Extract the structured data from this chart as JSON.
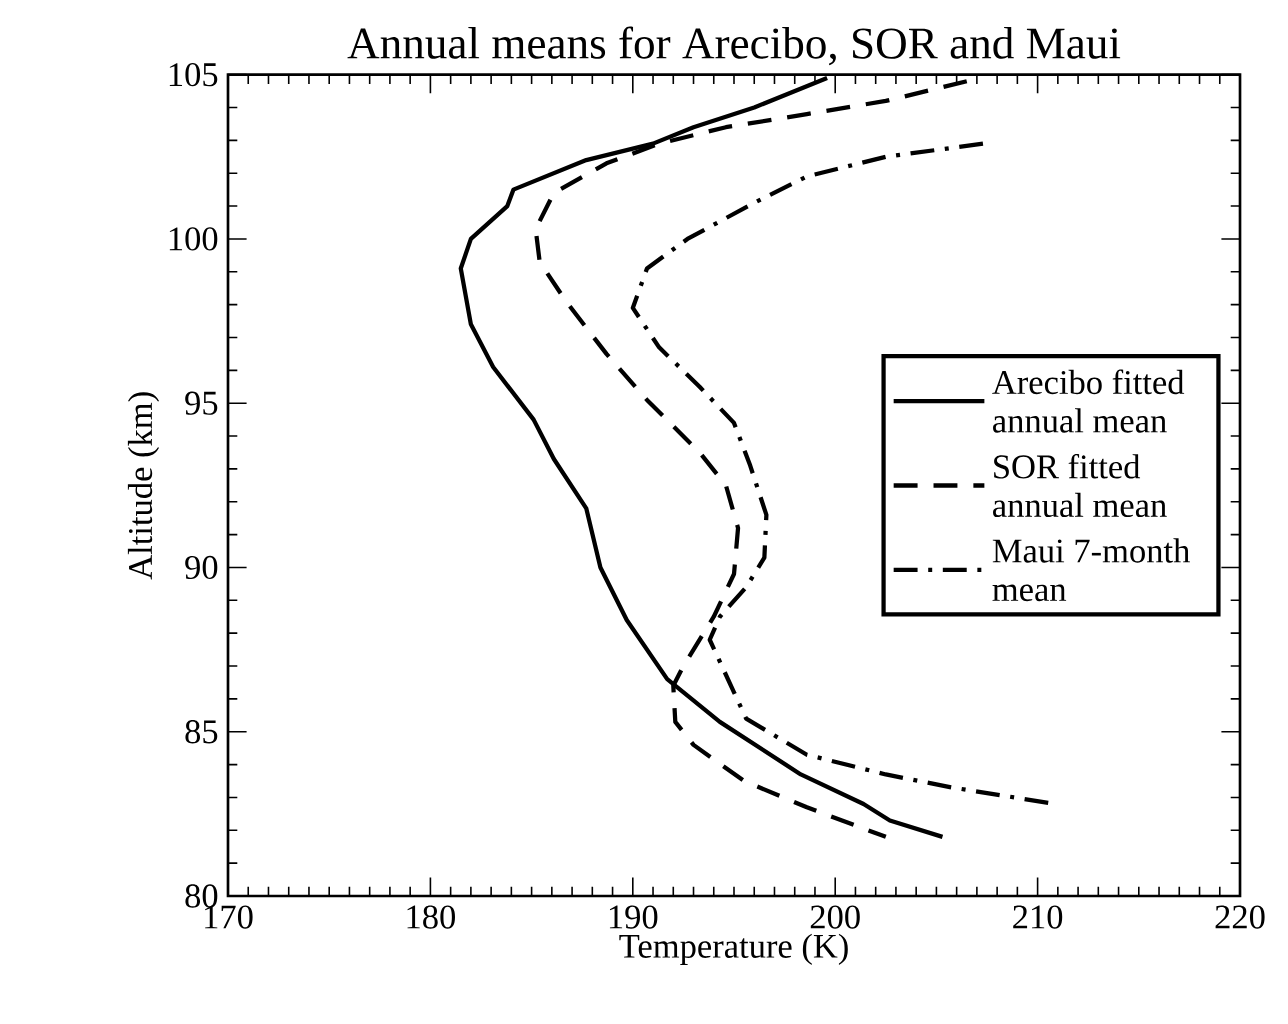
{
  "chart_data": {
    "type": "line",
    "title": "Annual means for Arecibo, SOR and Maui",
    "xlabel": "Temperature (K)",
    "ylabel": "Altitude (km)",
    "xlim": [
      170,
      220
    ],
    "xticks": [
      170,
      180,
      190,
      200,
      210,
      220
    ],
    "ylim": [
      80,
      105
    ],
    "yticks": [
      80,
      85,
      90,
      95,
      100,
      105
    ],
    "grid": false,
    "legend": "right",
    "marker": "none",
    "series": [
      {
        "name": "Arecibo fitted annual mean",
        "color": "#000000",
        "line_style": "solid",
        "x": [
          199.6,
          196.0,
          193.0,
          191.0,
          187.7,
          184.1,
          183.8,
          182.0,
          181.5,
          182.0,
          183.1,
          185.1,
          186.1,
          187.7,
          188.4,
          189.7,
          191.7,
          194.3,
          198.3,
          201.4,
          202.7,
          205.3
        ],
        "values": [
          104.9,
          104.0,
          103.4,
          102.9,
          102.4,
          101.5,
          101.0,
          100.0,
          99.1,
          97.4,
          96.1,
          94.5,
          93.3,
          91.8,
          90.0,
          88.4,
          86.6,
          85.3,
          83.7,
          82.8,
          82.3,
          81.8
        ]
      },
      {
        "name": "SOR fitted annual mean",
        "color": "#000000",
        "line_style": "dashed",
        "x": [
          206.5,
          202.5,
          198.6,
          194.6,
          191.3,
          188.7,
          186.1,
          185.2,
          185.4,
          186.7,
          188.7,
          190.7,
          193.3,
          194.6,
          195.2,
          195.0,
          194.0,
          192.5,
          192.0,
          192.1,
          193.0,
          195.5,
          198.6,
          202.5
        ],
        "values": [
          104.8,
          104.2,
          103.8,
          103.4,
          102.9,
          102.3,
          101.4,
          100.3,
          99.3,
          98.1,
          96.5,
          95.1,
          93.5,
          92.5,
          91.2,
          89.8,
          88.5,
          87.0,
          86.4,
          85.3,
          84.6,
          83.5,
          82.7,
          81.8
        ]
      },
      {
        "name": "Maui 7-month mean",
        "color": "#000000",
        "line_style": "dashdot",
        "x": [
          207.3,
          202.5,
          198.6,
          196.0,
          192.7,
          190.7,
          190.0,
          191.3,
          193.3,
          195.0,
          195.8,
          196.6,
          196.5,
          195.6,
          194.3,
          193.8,
          195.0,
          195.6,
          198.6,
          202.5,
          205.8,
          210.9
        ],
        "values": [
          102.9,
          102.5,
          101.9,
          101.1,
          100.0,
          99.1,
          97.9,
          96.7,
          95.5,
          94.4,
          93.1,
          91.6,
          90.3,
          89.4,
          88.5,
          87.8,
          86.2,
          85.4,
          84.3,
          83.7,
          83.3,
          82.8
        ]
      }
    ]
  }
}
